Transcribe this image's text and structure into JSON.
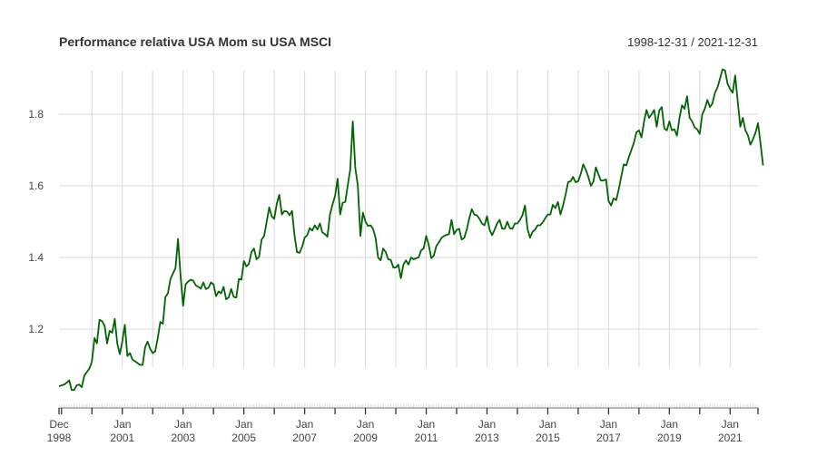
{
  "chart_data": {
    "type": "line",
    "title": "Performance relativa USA Mom su USA MSCI",
    "date_range_label": "1998-12-31 / 2021-12-31",
    "xlabel": "",
    "ylabel": "",
    "x_start": "1998-12",
    "x_end": "2021-12",
    "ylim": [
      1.02,
      1.93
    ],
    "grid": true,
    "legend": "none",
    "line_color": "#006400",
    "grid_color": "#d9d9d9",
    "y_ticks": [
      {
        "value": 1.2,
        "label": "1.2"
      },
      {
        "value": 1.4,
        "label": "1.4"
      },
      {
        "value": 1.6,
        "label": "1.6"
      },
      {
        "value": 1.8,
        "label": "1.8"
      }
    ],
    "x_ticks": [
      {
        "month": 0,
        "line1": "Dec",
        "line2": "1998"
      },
      {
        "month": 25,
        "line1": "Jan",
        "line2": "2001"
      },
      {
        "month": 49,
        "line1": "Jan",
        "line2": "2003"
      },
      {
        "month": 73,
        "line1": "Jan",
        "line2": "2005"
      },
      {
        "month": 97,
        "line1": "Jan",
        "line2": "2007"
      },
      {
        "month": 121,
        "line1": "Jan",
        "line2": "2009"
      },
      {
        "month": 145,
        "line1": "Jan",
        "line2": "2011"
      },
      {
        "month": 169,
        "line1": "Jan",
        "line2": "2013"
      },
      {
        "month": 193,
        "line1": "Jan",
        "line2": "2015"
      },
      {
        "month": 217,
        "line1": "Jan",
        "line2": "2017"
      },
      {
        "month": 241,
        "line1": "Jan",
        "line2": "2019"
      },
      {
        "month": 265,
        "line1": "Jan",
        "line2": "2021"
      }
    ],
    "minor_tick_months": [
      1,
      13,
      37,
      61,
      85,
      109,
      133,
      157,
      181,
      205,
      229,
      253,
      276
    ],
    "series": [
      {
        "name": "USA Mom / USA MSCI",
        "points": [
          [
            0,
            1.04
          ],
          [
            1,
            1.043
          ],
          [
            2,
            1.045
          ],
          [
            3,
            1.05
          ],
          [
            4,
            1.057
          ],
          [
            5,
            1.03
          ],
          [
            6,
            1.03
          ],
          [
            7,
            1.043
          ],
          [
            8,
            1.045
          ],
          [
            9,
            1.038
          ],
          [
            10,
            1.07
          ],
          [
            11,
            1.08
          ],
          [
            12,
            1.09
          ],
          [
            13,
            1.11
          ],
          [
            14,
            1.175
          ],
          [
            15,
            1.16
          ],
          [
            16,
            1.226
          ],
          [
            17,
            1.222
          ],
          [
            18,
            1.21
          ],
          [
            19,
            1.16
          ],
          [
            20,
            1.195
          ],
          [
            21,
            1.19
          ],
          [
            22,
            1.228
          ],
          [
            23,
            1.16
          ],
          [
            24,
            1.13
          ],
          [
            25,
            1.165
          ],
          [
            26,
            1.212
          ],
          [
            27,
            1.125
          ],
          [
            28,
            1.133
          ],
          [
            29,
            1.115
          ],
          [
            30,
            1.11
          ],
          [
            31,
            1.105
          ],
          [
            32,
            1.1
          ],
          [
            33,
            1.1
          ],
          [
            34,
            1.15
          ],
          [
            35,
            1.165
          ],
          [
            36,
            1.145
          ],
          [
            37,
            1.133
          ],
          [
            38,
            1.138
          ],
          [
            39,
            1.175
          ],
          [
            40,
            1.22
          ],
          [
            41,
            1.215
          ],
          [
            42,
            1.29
          ],
          [
            43,
            1.3
          ],
          [
            44,
            1.34
          ],
          [
            45,
            1.355
          ],
          [
            46,
            1.37
          ],
          [
            47,
            1.452
          ],
          [
            48,
            1.35
          ],
          [
            49,
            1.265
          ],
          [
            50,
            1.325
          ],
          [
            51,
            1.333
          ],
          [
            52,
            1.338
          ],
          [
            53,
            1.335
          ],
          [
            54,
            1.322
          ],
          [
            55,
            1.318
          ],
          [
            56,
            1.313
          ],
          [
            57,
            1.33
          ],
          [
            58,
            1.312
          ],
          [
            59,
            1.315
          ],
          [
            60,
            1.33
          ],
          [
            61,
            1.325
          ],
          [
            62,
            1.292
          ],
          [
            63,
            1.305
          ],
          [
            64,
            1.3
          ],
          [
            65,
            1.318
          ],
          [
            66,
            1.283
          ],
          [
            67,
            1.288
          ],
          [
            68,
            1.312
          ],
          [
            69,
            1.29
          ],
          [
            70,
            1.288
          ],
          [
            71,
            1.34
          ],
          [
            72,
            1.338
          ],
          [
            73,
            1.39
          ],
          [
            74,
            1.375
          ],
          [
            75,
            1.382
          ],
          [
            76,
            1.415
          ],
          [
            77,
            1.425
          ],
          [
            78,
            1.395
          ],
          [
            79,
            1.402
          ],
          [
            80,
            1.45
          ],
          [
            81,
            1.46
          ],
          [
            82,
            1.5
          ],
          [
            83,
            1.54
          ],
          [
            84,
            1.515
          ],
          [
            85,
            1.508
          ],
          [
            86,
            1.55
          ],
          [
            87,
            1.575
          ],
          [
            88,
            1.52
          ],
          [
            89,
            1.53
          ],
          [
            90,
            1.528
          ],
          [
            91,
            1.518
          ],
          [
            92,
            1.53
          ],
          [
            93,
            1.46
          ],
          [
            94,
            1.415
          ],
          [
            95,
            1.413
          ],
          [
            96,
            1.43
          ],
          [
            97,
            1.455
          ],
          [
            98,
            1.462
          ],
          [
            99,
            1.482
          ],
          [
            100,
            1.475
          ],
          [
            101,
            1.49
          ],
          [
            102,
            1.478
          ],
          [
            103,
            1.495
          ],
          [
            104,
            1.47
          ],
          [
            105,
            1.465
          ],
          [
            106,
            1.458
          ],
          [
            107,
            1.52
          ],
          [
            108,
            1.548
          ],
          [
            109,
            1.572
          ],
          [
            110,
            1.62
          ],
          [
            111,
            1.52
          ],
          [
            112,
            1.553
          ],
          [
            113,
            1.555
          ],
          [
            114,
            1.6
          ],
          [
            115,
            1.645
          ],
          [
            116,
            1.78
          ],
          [
            117,
            1.65
          ],
          [
            118,
            1.6
          ],
          [
            119,
            1.46
          ],
          [
            120,
            1.525
          ],
          [
            121,
            1.5
          ],
          [
            122,
            1.488
          ],
          [
            123,
            1.49
          ],
          [
            124,
            1.48
          ],
          [
            125,
            1.455
          ],
          [
            126,
            1.4
          ],
          [
            127,
            1.392
          ],
          [
            128,
            1.425
          ],
          [
            129,
            1.415
          ],
          [
            130,
            1.395
          ],
          [
            131,
            1.393
          ],
          [
            132,
            1.372
          ],
          [
            133,
            1.372
          ],
          [
            134,
            1.38
          ],
          [
            135,
            1.342
          ],
          [
            136,
            1.38
          ],
          [
            137,
            1.392
          ],
          [
            138,
            1.38
          ],
          [
            139,
            1.4
          ],
          [
            140,
            1.395
          ],
          [
            141,
            1.398
          ],
          [
            142,
            1.4
          ],
          [
            143,
            1.42
          ],
          [
            144,
            1.425
          ],
          [
            145,
            1.46
          ],
          [
            146,
            1.435
          ],
          [
            147,
            1.398
          ],
          [
            148,
            1.405
          ],
          [
            149,
            1.432
          ],
          [
            150,
            1.442
          ],
          [
            151,
            1.455
          ],
          [
            152,
            1.46
          ],
          [
            153,
            1.463
          ],
          [
            154,
            1.465
          ],
          [
            155,
            1.505
          ],
          [
            156,
            1.465
          ],
          [
            157,
            1.477
          ],
          [
            158,
            1.48
          ],
          [
            159,
            1.45
          ],
          [
            160,
            1.455
          ],
          [
            161,
            1.478
          ],
          [
            162,
            1.51
          ],
          [
            163,
            1.535
          ],
          [
            164,
            1.52
          ],
          [
            165,
            1.518
          ],
          [
            166,
            1.508
          ],
          [
            167,
            1.495
          ],
          [
            168,
            1.49
          ],
          [
            169,
            1.515
          ],
          [
            170,
            1.478
          ],
          [
            171,
            1.462
          ],
          [
            172,
            1.478
          ],
          [
            173,
            1.495
          ],
          [
            174,
            1.505
          ],
          [
            175,
            1.48
          ],
          [
            176,
            1.48
          ],
          [
            177,
            1.5
          ],
          [
            178,
            1.482
          ],
          [
            179,
            1.48
          ],
          [
            180,
            1.495
          ],
          [
            181,
            1.495
          ],
          [
            182,
            1.505
          ],
          [
            183,
            1.518
          ],
          [
            184,
            1.545
          ],
          [
            185,
            1.48
          ],
          [
            186,
            1.455
          ],
          [
            187,
            1.472
          ],
          [
            188,
            1.478
          ],
          [
            189,
            1.49
          ],
          [
            190,
            1.49
          ],
          [
            191,
            1.498
          ],
          [
            192,
            1.51
          ],
          [
            193,
            1.52
          ],
          [
            194,
            1.52
          ],
          [
            195,
            1.547
          ],
          [
            196,
            1.538
          ],
          [
            197,
            1.555
          ],
          [
            198,
            1.52
          ],
          [
            199,
            1.545
          ],
          [
            200,
            1.575
          ],
          [
            201,
            1.61
          ],
          [
            202,
            1.613
          ],
          [
            203,
            1.625
          ],
          [
            204,
            1.61
          ],
          [
            205,
            1.613
          ],
          [
            206,
            1.633
          ],
          [
            207,
            1.66
          ],
          [
            208,
            1.645
          ],
          [
            209,
            1.625
          ],
          [
            210,
            1.6
          ],
          [
            211,
            1.612
          ],
          [
            212,
            1.652
          ],
          [
            213,
            1.632
          ],
          [
            214,
            1.615
          ],
          [
            215,
            1.615
          ],
          [
            216,
            1.618
          ],
          [
            217,
            1.558
          ],
          [
            218,
            1.545
          ],
          [
            219,
            1.565
          ],
          [
            220,
            1.56
          ],
          [
            221,
            1.59
          ],
          [
            222,
            1.625
          ],
          [
            223,
            1.66
          ],
          [
            224,
            1.657
          ],
          [
            225,
            1.68
          ],
          [
            226,
            1.7
          ],
          [
            227,
            1.72
          ],
          [
            228,
            1.75
          ],
          [
            229,
            1.755
          ],
          [
            230,
            1.735
          ],
          [
            231,
            1.78
          ],
          [
            232,
            1.812
          ],
          [
            233,
            1.79
          ],
          [
            234,
            1.8
          ],
          [
            235,
            1.812
          ],
          [
            236,
            1.765
          ],
          [
            237,
            1.81
          ],
          [
            238,
            1.82
          ],
          [
            239,
            1.76
          ],
          [
            240,
            1.755
          ],
          [
            241,
            1.78
          ],
          [
            242,
            1.755
          ],
          [
            243,
            1.758
          ],
          [
            244,
            1.74
          ],
          [
            245,
            1.79
          ],
          [
            246,
            1.825
          ],
          [
            247,
            1.815
          ],
          [
            248,
            1.85
          ],
          [
            249,
            1.79
          ],
          [
            250,
            1.78
          ],
          [
            251,
            1.763
          ],
          [
            252,
            1.758
          ],
          [
            253,
            1.745
          ],
          [
            254,
            1.8
          ],
          [
            255,
            1.815
          ],
          [
            256,
            1.84
          ],
          [
            257,
            1.82
          ],
          [
            258,
            1.83
          ],
          [
            259,
            1.86
          ],
          [
            260,
            1.875
          ],
          [
            261,
            1.9
          ],
          [
            262,
            1.925
          ],
          [
            263,
            1.922
          ],
          [
            264,
            1.885
          ],
          [
            265,
            1.87
          ],
          [
            266,
            1.86
          ],
          [
            267,
            1.908
          ],
          [
            268,
            1.835
          ],
          [
            269,
            1.765
          ],
          [
            270,
            1.79
          ],
          [
            271,
            1.755
          ],
          [
            272,
            1.742
          ],
          [
            273,
            1.715
          ],
          [
            274,
            1.73
          ],
          [
            275,
            1.748
          ],
          [
            276,
            1.775
          ],
          [
            277,
            1.718
          ],
          [
            278,
            1.657
          ]
        ]
      }
    ]
  }
}
